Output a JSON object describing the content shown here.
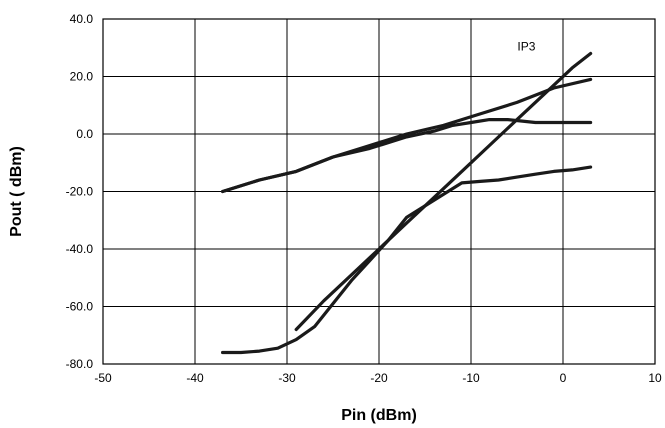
{
  "chart_data": {
    "type": "line",
    "title": "",
    "xlabel": "Pin (dBm)",
    "ylabel": "Pout ( dBm)",
    "xlim": [
      -50,
      10
    ],
    "ylim": [
      -80,
      40
    ],
    "x_ticks": [
      -50,
      -40,
      -30,
      -20,
      -10,
      0,
      10
    ],
    "y_ticks": [
      -80,
      -60,
      -40,
      -20,
      0,
      20,
      40
    ],
    "x_tick_labels": [
      "-50",
      "-40",
      "-30",
      "-20",
      "-10",
      "0",
      "10"
    ],
    "y_tick_labels": [
      "-80.0",
      "-60.0",
      "-40.0",
      "-20.0",
      "0.0",
      "20.0",
      "40.0"
    ],
    "grid": true,
    "line_color": "#1a1a1a",
    "annotations": [
      {
        "text": "IP3",
        "x": -3,
        "y": 29
      }
    ],
    "series": [
      {
        "x": [
          -37,
          -33,
          -29,
          -25,
          -21,
          -17,
          -13,
          -9,
          -5,
          -1,
          3
        ],
        "y": [
          -20,
          -16,
          -13,
          -8,
          -4,
          0,
          3,
          7,
          11,
          16,
          19
        ]
      },
      {
        "x": [
          -37,
          -33,
          -29,
          -25,
          -21,
          -17,
          -14,
          -12,
          -10,
          -8,
          -6,
          -3,
          0,
          3
        ],
        "y": [
          -20,
          -16,
          -13,
          -8,
          -5,
          -1,
          1,
          3,
          4,
          5,
          5,
          4,
          4,
          4
        ]
      },
      {
        "x": [
          -29,
          -26,
          -23,
          -20,
          -17,
          -14,
          -11,
          -8,
          -5,
          -2,
          1,
          3
        ],
        "y": [
          -68,
          -58,
          -49,
          -40,
          -31,
          -22,
          -13,
          -4,
          5,
          14,
          23,
          28
        ]
      },
      {
        "x": [
          -37,
          -35,
          -33,
          -31,
          -29,
          -27,
          -25,
          -23,
          -21,
          -19,
          -17,
          -15,
          -13,
          -11,
          -9,
          -7,
          -5,
          -3,
          -1,
          1,
          3
        ],
        "y": [
          -76,
          -76,
          -75.5,
          -74.5,
          -71.5,
          -67,
          -59,
          -51,
          -44,
          -37,
          -29,
          -25,
          -21,
          -17,
          -16.5,
          -16,
          -15,
          -14,
          -13,
          -12.5,
          -11.5
        ]
      }
    ]
  }
}
